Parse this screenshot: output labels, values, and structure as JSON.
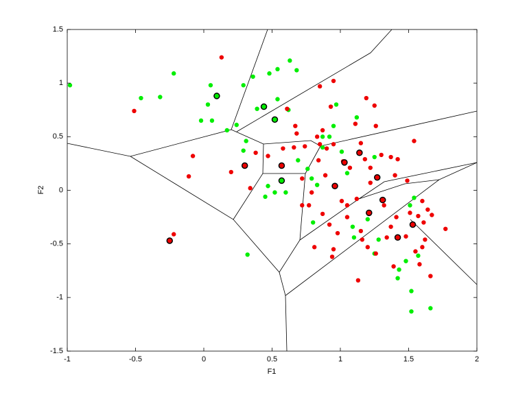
{
  "chart_data": {
    "type": "scatter",
    "xlabel": "F1",
    "ylabel": "F2",
    "xlim": [
      -1,
      2
    ],
    "ylim": [
      -1.5,
      1.5
    ],
    "xticks": [
      -1,
      -0.5,
      0,
      0.5,
      1,
      1.5,
      2
    ],
    "yticks": [
      -1.5,
      -1,
      -0.5,
      0,
      0.5,
      1,
      1.5
    ],
    "series": [
      {
        "color": "#00ee00",
        "x": [
          -0.98,
          -0.46,
          -0.32,
          -0.22,
          0.05,
          0.03,
          -0.02,
          0.06,
          0.17,
          0.24,
          0.29,
          0.36,
          0.39,
          0.48,
          0.54,
          0.54,
          0.63,
          0.68,
          0.62,
          0.31,
          0.29,
          0.45,
          0.52,
          0.6,
          0.47,
          0.69,
          0.76,
          0.87,
          0.97,
          0.95,
          1.12,
          1.01,
          1.05,
          1.25,
          0.83,
          0.8,
          1.2,
          1.28,
          1.25,
          1.43,
          1.48,
          1.51,
          1.54,
          1.57,
          1.52,
          1.52,
          1.66,
          1.42,
          0.32,
          1.09,
          1.1,
          0.79,
          0.87,
          0.92
        ],
        "values": [
          0.98,
          0.86,
          0.87,
          1.09,
          0.98,
          0.8,
          0.65,
          0.65,
          0.56,
          0.61,
          0.98,
          1.06,
          0.76,
          1.09,
          1.13,
          0.85,
          1.21,
          1.12,
          0.75,
          0.46,
          0.37,
          -0.06,
          -0.02,
          -0.02,
          0.04,
          0.28,
          0.2,
          0.5,
          0.8,
          0.6,
          0.68,
          0.36,
          0.16,
          0.31,
          0.05,
          -0.3,
          -0.27,
          -0.46,
          -0.59,
          -0.74,
          -0.66,
          -0.14,
          -0.07,
          -0.61,
          -0.94,
          -1.13,
          -1.1,
          -0.82,
          -0.6,
          -0.34,
          -0.44,
          0.11,
          0.4,
          0.5
        ]
      },
      {
        "color": "#ee0000",
        "x": [
          0.13,
          -0.51,
          -0.08,
          -0.11,
          0.2,
          0.34,
          0.61,
          0.58,
          0.68,
          0.74,
          0.85,
          0.95,
          0.93,
          0.83,
          0.85,
          0.9,
          0.95,
          1.02,
          1.07,
          1.11,
          1.19,
          1.25,
          1.26,
          1.15,
          1.18,
          1.22,
          1.22,
          1.3,
          1.37,
          1.42,
          1.4,
          1.49,
          1.54,
          0.84,
          0.89,
          0.79,
          0.77,
          0.87,
          0.92,
          0.98,
          0.95,
          1.01,
          1.12,
          1.05,
          1.15,
          1.2,
          1.26,
          1.34,
          1.37,
          1.48,
          1.51,
          1.57,
          1.61,
          1.64,
          1.67,
          1.62,
          1.6,
          1.55,
          1.58,
          1.66,
          1.39,
          1.77,
          1.13,
          0.81,
          0.94,
          -0.22,
          1.16,
          1.05,
          1.32,
          1.41,
          1.6,
          0.87,
          0.67,
          0.66,
          0.72,
          0.72,
          0.47,
          0.38
        ],
        "values": [
          1.24,
          0.74,
          0.32,
          0.13,
          0.17,
          0.02,
          0.76,
          0.39,
          0.53,
          0.41,
          0.97,
          1.02,
          0.78,
          0.5,
          0.43,
          0.39,
          0.43,
          0.27,
          0.21,
          0.62,
          0.86,
          0.79,
          0.6,
          0.44,
          0.29,
          0.21,
          0.07,
          0.33,
          0.31,
          0.29,
          0.14,
          0.09,
          0.46,
          0.28,
          0.14,
          -0.02,
          -0.14,
          -0.22,
          -0.32,
          -0.4,
          -0.55,
          -0.1,
          -0.08,
          -0.25,
          -0.38,
          -0.53,
          -0.59,
          -0.44,
          -0.34,
          -0.43,
          -0.21,
          -0.24,
          -0.3,
          -0.18,
          -0.23,
          -0.46,
          -0.53,
          -0.57,
          -0.69,
          -0.8,
          -0.71,
          -0.36,
          -0.84,
          -0.53,
          -0.62,
          -0.41,
          -0.46,
          -0.14,
          -0.14,
          -0.25,
          -0.1,
          0.56,
          0.6,
          0.4,
          0.11,
          -0.14,
          0.32,
          0.35
        ]
      },
      {
        "color": "#00ee00",
        "edgecolor": "#000000",
        "x": [
          0.095,
          0.44,
          0.52,
          0.57
        ],
        "values": [
          0.88,
          0.78,
          0.66,
          0.09
        ]
      },
      {
        "color": "#ee0000",
        "edgecolor": "#000000",
        "x": [
          0.3,
          0.57,
          -0.25,
          0.96,
          1.03,
          1.14,
          1.27,
          1.31,
          1.21,
          1.42,
          1.53
        ],
        "values": [
          0.23,
          0.23,
          -0.47,
          0.04,
          0.26,
          0.35,
          0.12,
          -0.09,
          -0.21,
          -0.44,
          -0.32
        ]
      }
    ]
  }
}
